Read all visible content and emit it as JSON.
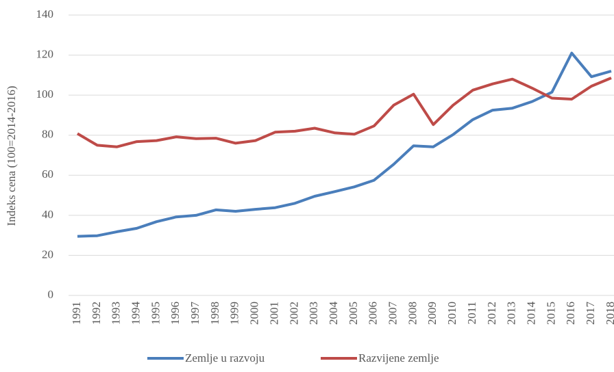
{
  "chart_data": {
    "type": "line",
    "y_label": "Indeks cena (100=2014-2016)",
    "categories": [
      "1991",
      "1992",
      "1993",
      "1994",
      "1995",
      "1996",
      "1997",
      "1998",
      "1999",
      "2000",
      "2001",
      "2002",
      "2003",
      "2004",
      "2005",
      "2006",
      "2007",
      "2008",
      "2009",
      "2010",
      "2011",
      "2012",
      "2013",
      "2014",
      "2015",
      "2016",
      "2017",
      "2018"
    ],
    "series": [
      {
        "name": "Zemlje u razvoju",
        "color": "#4a7ebb",
        "values": [
          29.5,
          29.8,
          31.8,
          33.5,
          36.8,
          39.2,
          40,
          42.7,
          42,
          43,
          43.8,
          46,
          49.5,
          51.8,
          54.2,
          57.5,
          65.5,
          74.7,
          74.2,
          80.3,
          87.8,
          92.5,
          93.5,
          96.8,
          101.5,
          121,
          109.2,
          112
        ]
      },
      {
        "name": "Razvijene zemlje",
        "color": "#be4b48",
        "values": [
          80.8,
          75,
          74.2,
          76.8,
          77.3,
          79.2,
          78.3,
          78.5,
          76,
          77.3,
          81.5,
          82,
          83.5,
          81.2,
          80.5,
          84.6,
          95,
          100.5,
          85.3,
          95,
          102.5,
          105.6,
          108,
          103.5,
          98.5,
          98,
          104.5,
          108.6
        ]
      }
    ],
    "ylim": [
      0,
      140
    ],
    "yticks": [
      0,
      20,
      40,
      60,
      80,
      100,
      120,
      140
    ],
    "grid": true,
    "legend": "bottom"
  }
}
